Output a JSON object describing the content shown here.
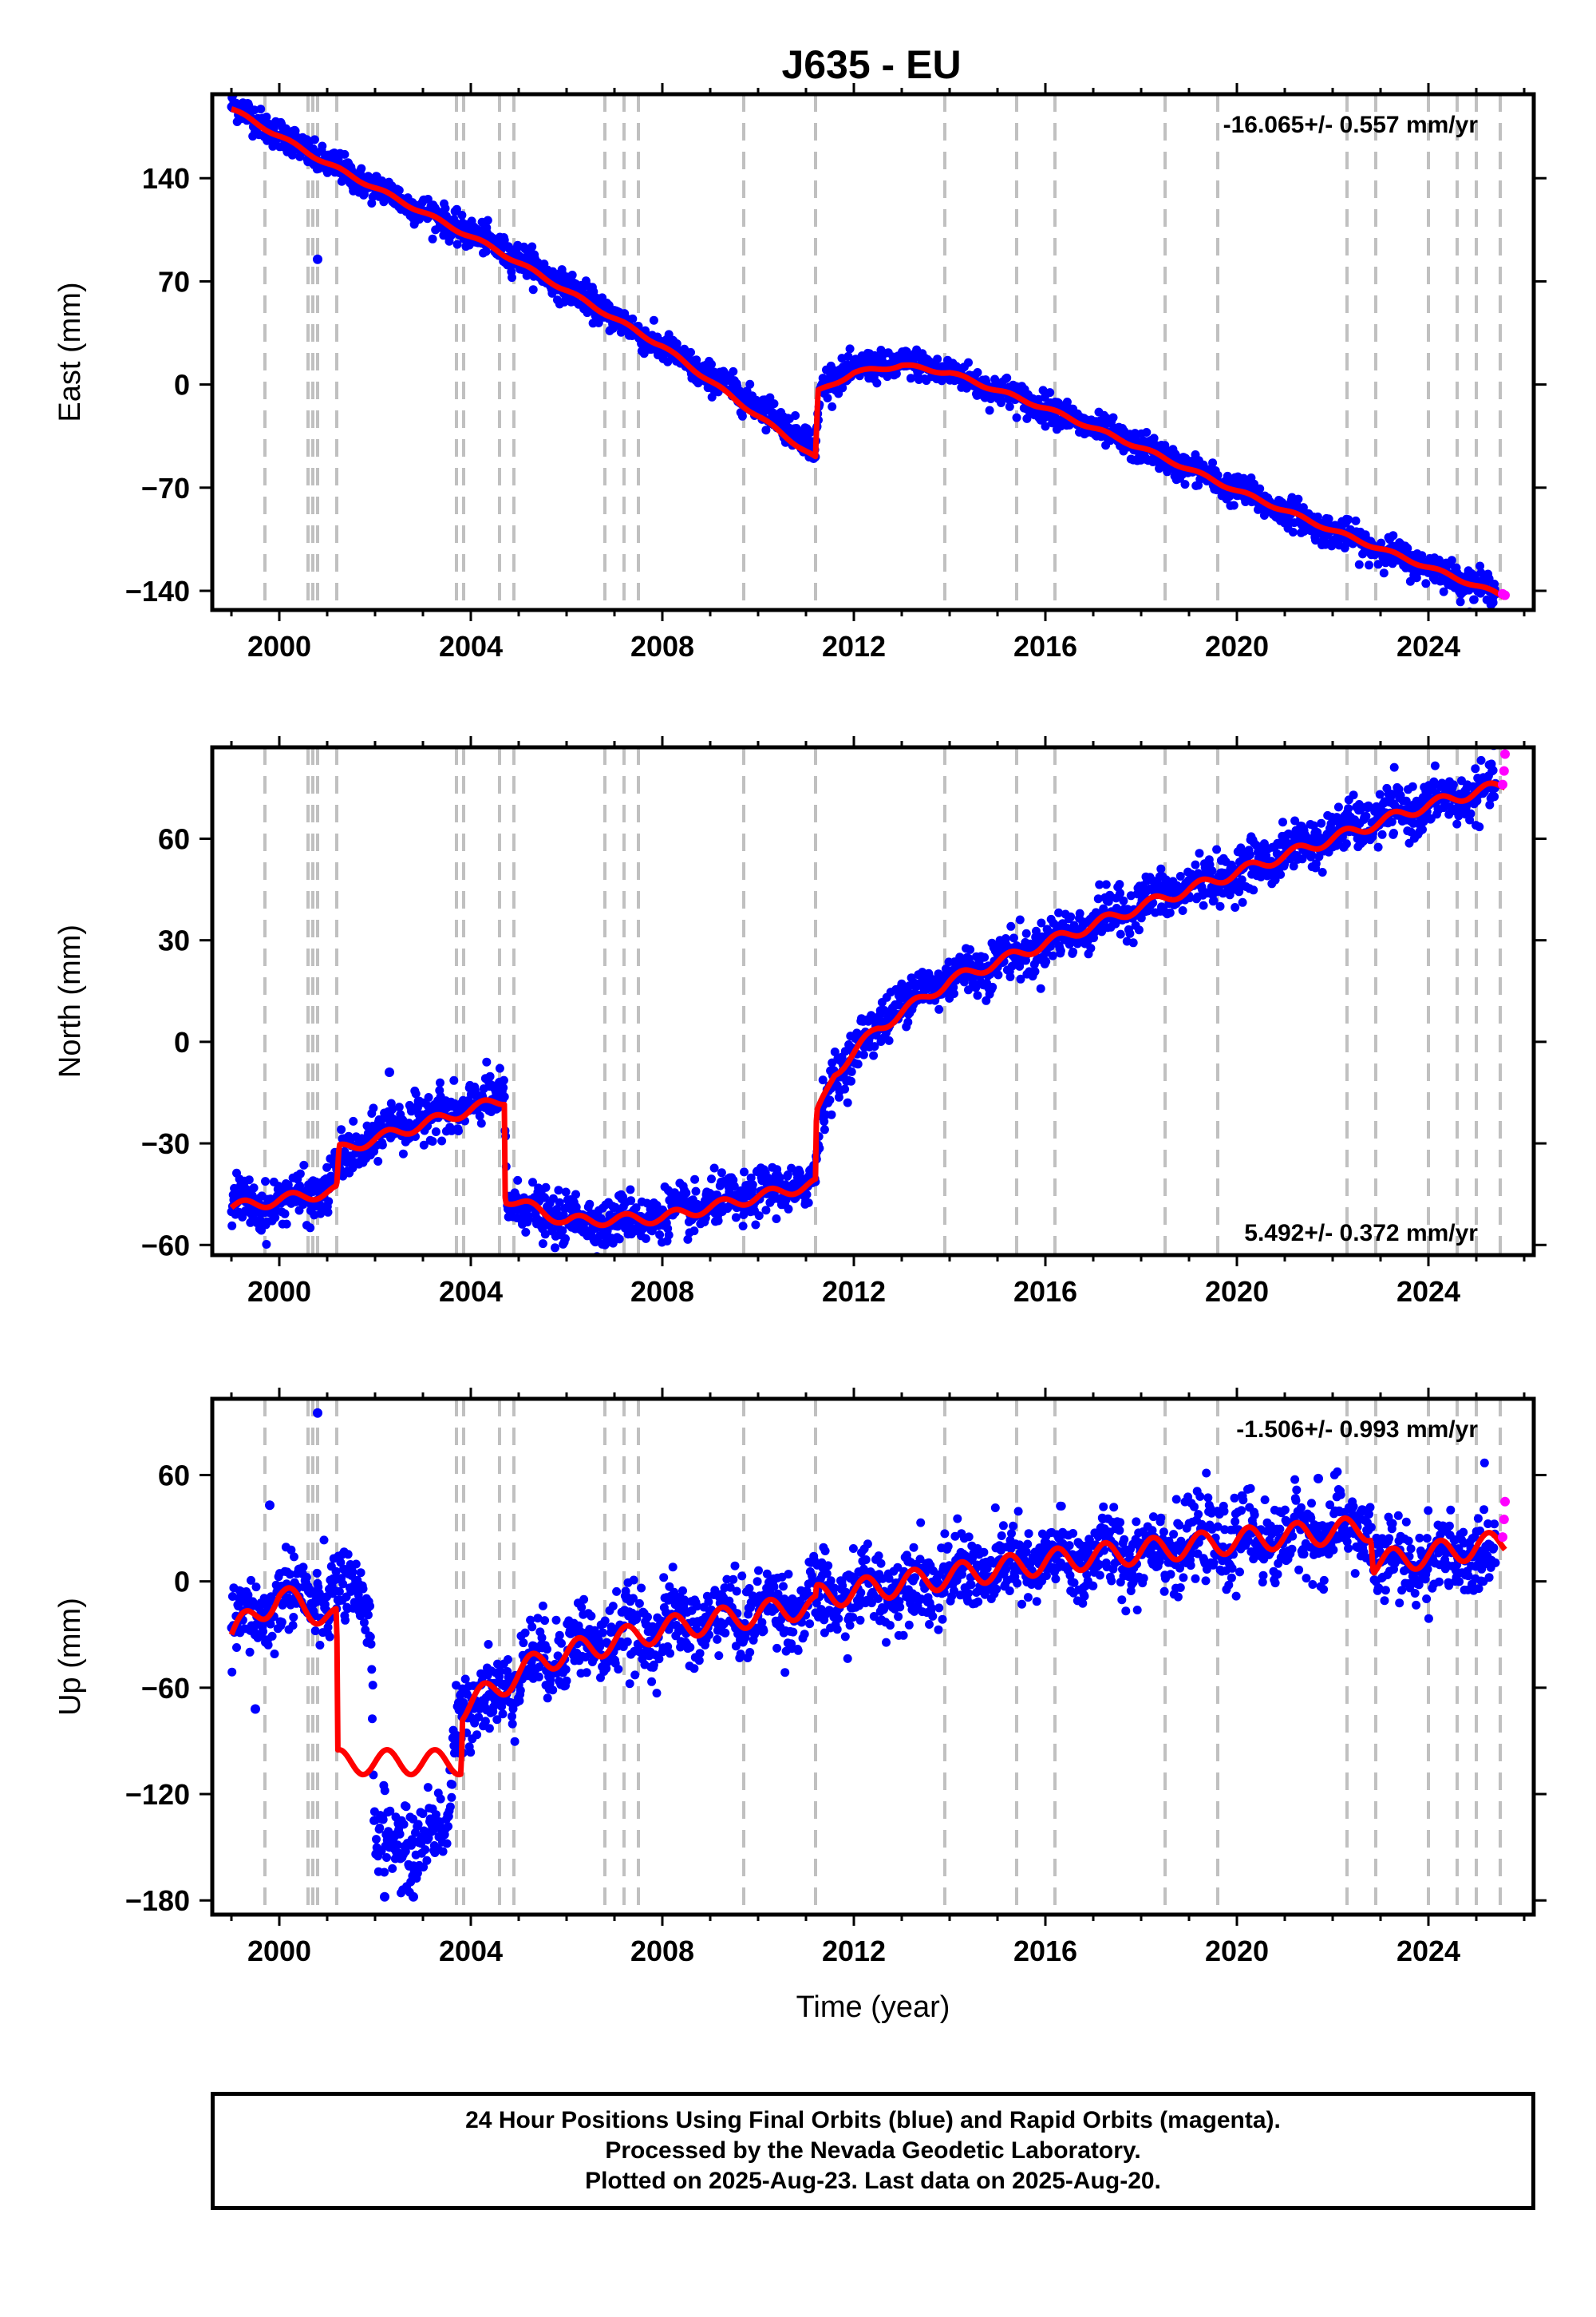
{
  "title": "J635 - EU",
  "colors": {
    "final_orbits": "#0000ff",
    "rapid_orbits": "#ff00ff",
    "model": "#ff0000",
    "event_lines": "#c0c0c0",
    "frame": "#000000"
  },
  "chart_data": [
    {
      "type": "scatter",
      "name": "east",
      "ylabel": "East (mm)",
      "xlabel": "",
      "xlim": [
        1998.6,
        2026.2
      ],
      "ylim": [
        -153,
        197
      ],
      "yticks": [
        -140,
        -70,
        0,
        70,
        140
      ],
      "xticks": [
        2000,
        2004,
        2008,
        2012,
        2016,
        2020,
        2024
      ],
      "rate_annotation": "-16.065+/- 0.557 mm/yr",
      "annotation_position": "top-right",
      "series_final": [
        [
          1999.0,
          190
        ],
        [
          1999.5,
          180
        ],
        [
          2000.0,
          170
        ],
        [
          2000.5,
          160
        ],
        [
          2001.0,
          150
        ],
        [
          2001.5,
          142
        ],
        [
          2002.0,
          134
        ],
        [
          2002.5,
          126
        ],
        [
          2003.0,
          118
        ],
        [
          2003.5,
          110
        ],
        [
          2004.0,
          102
        ],
        [
          2004.5,
          94
        ],
        [
          2005.0,
          86
        ],
        [
          2005.5,
          76
        ],
        [
          2006.0,
          66
        ],
        [
          2006.5,
          56
        ],
        [
          2007.0,
          45
        ],
        [
          2007.5,
          35
        ],
        [
          2008.0,
          25
        ],
        [
          2008.5,
          15
        ],
        [
          2009.0,
          5
        ],
        [
          2009.5,
          -4
        ],
        [
          2010.0,
          -14
        ],
        [
          2010.5,
          -26
        ],
        [
          2011.0,
          -36
        ],
        [
          2011.2,
          -47
        ],
        [
          2011.3,
          -5
        ],
        [
          2011.5,
          5
        ],
        [
          2012.0,
          10
        ],
        [
          2012.5,
          12
        ],
        [
          2013.0,
          14
        ],
        [
          2013.5,
          12
        ],
        [
          2014.0,
          8
        ],
        [
          2014.5,
          2
        ],
        [
          2015.0,
          -4
        ],
        [
          2015.5,
          -10
        ],
        [
          2016.0,
          -16
        ],
        [
          2016.5,
          -22
        ],
        [
          2017.0,
          -30
        ],
        [
          2017.5,
          -36
        ],
        [
          2018.0,
          -43
        ],
        [
          2018.5,
          -50
        ],
        [
          2019.0,
          -57
        ],
        [
          2019.5,
          -64
        ],
        [
          2020.0,
          -72
        ],
        [
          2020.5,
          -79
        ],
        [
          2021.0,
          -86
        ],
        [
          2021.5,
          -93
        ],
        [
          2022.0,
          -100
        ],
        [
          2022.5,
          -106
        ],
        [
          2023.0,
          -112
        ],
        [
          2023.5,
          -118
        ],
        [
          2024.0,
          -124
        ],
        [
          2024.5,
          -130
        ],
        [
          2025.0,
          -136
        ],
        [
          2025.4,
          -141
        ]
      ],
      "series_rapid": [
        [
          2025.55,
          -142
        ],
        [
          2025.6,
          -143
        ]
      ],
      "outliers": [
        [
          2000.8,
          85
        ]
      ],
      "model": [
        [
          1999.0,
          187
        ],
        [
          2001.0,
          150
        ],
        [
          2004.5,
          92
        ],
        [
          2008.0,
          26
        ],
        [
          2011.2,
          -50
        ],
        [
          2011.25,
          -5
        ],
        [
          2012.0,
          8
        ],
        [
          2013.0,
          13
        ],
        [
          2014.0,
          8
        ],
        [
          2016.0,
          -16
        ],
        [
          2018.0,
          -43
        ],
        [
          2020.0,
          -72
        ],
        [
          2022.0,
          -99
        ],
        [
          2024.0,
          -124
        ],
        [
          2025.6,
          -144
        ]
      ],
      "event_lines": [
        1999.7,
        2000.6,
        2000.7,
        2000.8,
        2001.2,
        2003.7,
        2003.85,
        2004.6,
        2004.9,
        2006.8,
        2007.2,
        2007.5,
        2009.7,
        2011.2,
        2013.9,
        2015.4,
        2016.2,
        2018.5,
        2019.6,
        2022.3,
        2022.9,
        2024.0,
        2024.6,
        2025.0,
        2025.5
      ],
      "noise_mm": 5
    },
    {
      "type": "scatter",
      "name": "north",
      "ylabel": "North (mm)",
      "xlabel": "",
      "xlim": [
        1998.6,
        2026.2
      ],
      "ylim": [
        -63,
        87
      ],
      "yticks": [
        -60,
        -30,
        0,
        30,
        60
      ],
      "xticks": [
        2000,
        2004,
        2008,
        2012,
        2016,
        2020,
        2024
      ],
      "rate_annotation": "5.492+/- 0.372 mm/yr",
      "annotation_position": "bottom-right",
      "series_final": [
        [
          1999.0,
          -47
        ],
        [
          1999.5,
          -49
        ],
        [
          2000.0,
          -47
        ],
        [
          2000.5,
          -46
        ],
        [
          2001.0,
          -44
        ],
        [
          2001.3,
          -35
        ],
        [
          2001.6,
          -32
        ],
        [
          2002.0,
          -28
        ],
        [
          2002.5,
          -24
        ],
        [
          2003.0,
          -22
        ],
        [
          2003.5,
          -21
        ],
        [
          2004.0,
          -19
        ],
        [
          2004.5,
          -17
        ],
        [
          2004.7,
          -15
        ],
        [
          2004.75,
          -45
        ],
        [
          2005.0,
          -49
        ],
        [
          2005.5,
          -51
        ],
        [
          2006.0,
          -52
        ],
        [
          2006.5,
          -53
        ],
        [
          2007.0,
          -53
        ],
        [
          2007.5,
          -52
        ],
        [
          2008.0,
          -51
        ],
        [
          2008.5,
          -50
        ],
        [
          2009.0,
          -48
        ],
        [
          2009.5,
          -47
        ],
        [
          2010.0,
          -45
        ],
        [
          2010.5,
          -44
        ],
        [
          2011.0,
          -42
        ],
        [
          2011.2,
          -40
        ],
        [
          2011.3,
          -22
        ],
        [
          2011.6,
          -10
        ],
        [
          2012.0,
          -3
        ],
        [
          2012.5,
          5
        ],
        [
          2013.0,
          12
        ],
        [
          2013.5,
          16
        ],
        [
          2014.0,
          19
        ],
        [
          2014.5,
          21
        ],
        [
          2015.0,
          24
        ],
        [
          2015.5,
          26
        ],
        [
          2016.0,
          29
        ],
        [
          2016.5,
          32
        ],
        [
          2017.0,
          35
        ],
        [
          2017.5,
          38
        ],
        [
          2018.0,
          41
        ],
        [
          2018.5,
          43
        ],
        [
          2019.0,
          46
        ],
        [
          2019.5,
          48
        ],
        [
          2020.0,
          50
        ],
        [
          2020.5,
          53
        ],
        [
          2021.0,
          56
        ],
        [
          2021.5,
          59
        ],
        [
          2022.0,
          61
        ],
        [
          2022.5,
          64
        ],
        [
          2023.0,
          66
        ],
        [
          2023.5,
          68
        ],
        [
          2024.0,
          70
        ],
        [
          2024.5,
          72
        ],
        [
          2025.0,
          73
        ],
        [
          2025.4,
          75
        ]
      ],
      "series_rapid": [
        [
          2025.55,
          76
        ],
        [
          2025.58,
          80
        ],
        [
          2025.6,
          85
        ]
      ],
      "outliers": [
        [
          2002.3,
          -9
        ],
        [
          2004.6,
          -12
        ]
      ],
      "model": [
        [
          1999.0,
          -49
        ],
        [
          2001.2,
          -44
        ],
        [
          2001.25,
          -32
        ],
        [
          2004.7,
          -17
        ],
        [
          2004.72,
          -46
        ],
        [
          2006.0,
          -53
        ],
        [
          2008.0,
          -52
        ],
        [
          2011.2,
          -42
        ],
        [
          2011.22,
          -22
        ],
        [
          2011.6,
          -9
        ],
        [
          2012.5,
          4
        ],
        [
          2014.0,
          18
        ],
        [
          2016.0,
          29
        ],
        [
          2018.0,
          40
        ],
        [
          2020.0,
          50
        ],
        [
          2022.0,
          60
        ],
        [
          2024.0,
          70
        ],
        [
          2025.6,
          76
        ]
      ],
      "event_lines": [
        1999.7,
        2000.6,
        2000.7,
        2000.8,
        2001.2,
        2003.7,
        2003.85,
        2004.6,
        2004.9,
        2006.8,
        2007.2,
        2007.5,
        2009.7,
        2011.2,
        2013.9,
        2015.4,
        2016.2,
        2018.5,
        2019.6,
        2022.3,
        2022.9,
        2024.0,
        2024.6,
        2025.0,
        2025.5
      ],
      "noise_mm": 3.5
    },
    {
      "type": "scatter",
      "name": "up",
      "ylabel": "Up (mm)",
      "xlabel": "Time (year)",
      "xlim": [
        1998.6,
        2026.2
      ],
      "ylim": [
        -188,
        103
      ],
      "yticks": [
        -180,
        -120,
        -60,
        0,
        60
      ],
      "xticks": [
        2000,
        2004,
        2008,
        2012,
        2016,
        2020,
        2024
      ],
      "rate_annotation": "-1.506+/- 0.993 mm/yr",
      "annotation_position": "top-right",
      "series_final": [
        [
          1999.0,
          -28
        ],
        [
          1999.5,
          -20
        ],
        [
          2000.0,
          -10
        ],
        [
          2000.5,
          -5
        ],
        [
          2001.0,
          -15
        ],
        [
          2001.3,
          -5
        ],
        [
          2001.6,
          -8
        ],
        [
          2001.9,
          -12
        ],
        [
          2002.0,
          -145
        ],
        [
          2002.5,
          -150
        ],
        [
          2003.0,
          -145
        ],
        [
          2003.5,
          -140
        ],
        [
          2003.7,
          -75
        ],
        [
          2004.0,
          -72
        ],
        [
          2004.5,
          -62
        ],
        [
          2005.0,
          -52
        ],
        [
          2005.5,
          -42
        ],
        [
          2006.0,
          -38
        ],
        [
          2006.5,
          -34
        ],
        [
          2007.0,
          -31
        ],
        [
          2007.5,
          -29
        ],
        [
          2008.0,
          -26
        ],
        [
          2008.5,
          -24
        ],
        [
          2009.0,
          -22
        ],
        [
          2009.5,
          -19
        ],
        [
          2010.0,
          -17
        ],
        [
          2010.5,
          -15
        ],
        [
          2011.0,
          -13
        ],
        [
          2011.5,
          -10
        ],
        [
          2012.0,
          -7
        ],
        [
          2012.5,
          -4
        ],
        [
          2013.0,
          -2
        ],
        [
          2013.5,
          0
        ],
        [
          2014.0,
          2
        ],
        [
          2014.5,
          5
        ],
        [
          2015.0,
          7
        ],
        [
          2015.5,
          9
        ],
        [
          2016.0,
          11
        ],
        [
          2016.5,
          13
        ],
        [
          2017.0,
          14
        ],
        [
          2017.5,
          16
        ],
        [
          2018.0,
          17
        ],
        [
          2018.5,
          19
        ],
        [
          2019.0,
          20
        ],
        [
          2019.5,
          22
        ],
        [
          2020.0,
          23
        ],
        [
          2020.5,
          24
        ],
        [
          2021.0,
          25
        ],
        [
          2021.5,
          27
        ],
        [
          2022.0,
          28
        ],
        [
          2022.5,
          30
        ],
        [
          2022.8,
          31
        ],
        [
          2022.9,
          8
        ],
        [
          2023.5,
          10
        ],
        [
          2024.0,
          12
        ],
        [
          2024.5,
          13
        ],
        [
          2025.0,
          14
        ],
        [
          2025.4,
          15
        ]
      ],
      "series_rapid": [
        [
          2025.55,
          25
        ],
        [
          2025.58,
          35
        ],
        [
          2025.6,
          45
        ]
      ],
      "outliers": [
        [
          2000.8,
          95
        ],
        [
          1999.8,
          43
        ],
        [
          1999.5,
          -72
        ],
        [
          2002.2,
          -178
        ],
        [
          2002.8,
          -178
        ],
        [
          2021.7,
          58
        ]
      ],
      "model": [
        [
          1999.0,
          -30
        ],
        [
          2000.0,
          -8
        ],
        [
          2001.2,
          -22
        ],
        [
          2001.22,
          -102
        ],
        [
          2003.8,
          -102
        ],
        [
          2003.82,
          -72
        ],
        [
          2005.5,
          -44
        ],
        [
          2008.0,
          -27
        ],
        [
          2011.0,
          -14
        ],
        [
          2011.2,
          -15
        ],
        [
          2011.22,
          -9
        ],
        [
          2014.0,
          3
        ],
        [
          2016.0,
          11
        ],
        [
          2018.0,
          17
        ],
        [
          2020.0,
          23
        ],
        [
          2022.8,
          30
        ],
        [
          2022.85,
          10
        ],
        [
          2025.6,
          22
        ]
      ],
      "event_lines": [
        1999.7,
        2000.6,
        2000.7,
        2000.8,
        2001.2,
        2003.7,
        2003.85,
        2004.6,
        2004.9,
        2006.8,
        2007.2,
        2007.5,
        2009.7,
        2011.2,
        2013.9,
        2015.4,
        2016.2,
        2018.5,
        2019.6,
        2022.3,
        2022.9,
        2024.0,
        2024.6,
        2025.0,
        2025.5
      ],
      "noise_mm": 11
    }
  ],
  "footer": {
    "line1": "24 Hour Positions Using Final Orbits (blue) and Rapid Orbits (magenta).",
    "line2": "Processed by the Nevada Geodetic Laboratory.",
    "line3": "Plotted on 2025-Aug-23. Last data on 2025-Aug-20."
  }
}
